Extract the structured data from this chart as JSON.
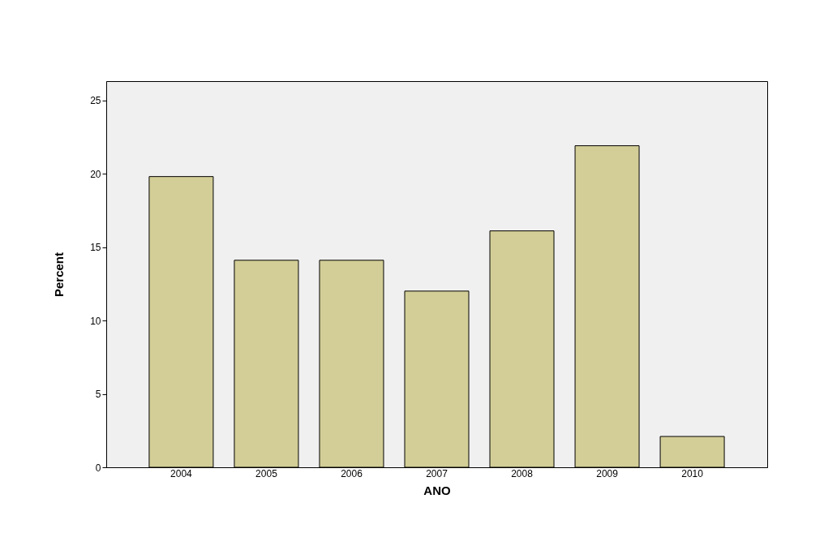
{
  "chart_data": {
    "type": "bar",
    "xlabel": "ANO",
    "ylabel": "Percent",
    "categories": [
      "2004",
      "2005",
      "2006",
      "2007",
      "2008",
      "2009",
      "2010"
    ],
    "values": [
      19.8,
      14.1,
      14.1,
      12.0,
      16.1,
      21.9,
      2.1
    ],
    "color": "#d3ce97",
    "ylim": [
      0,
      26.3
    ],
    "yticks": [
      0,
      5,
      10,
      15,
      20,
      25
    ],
    "grid": false
  }
}
